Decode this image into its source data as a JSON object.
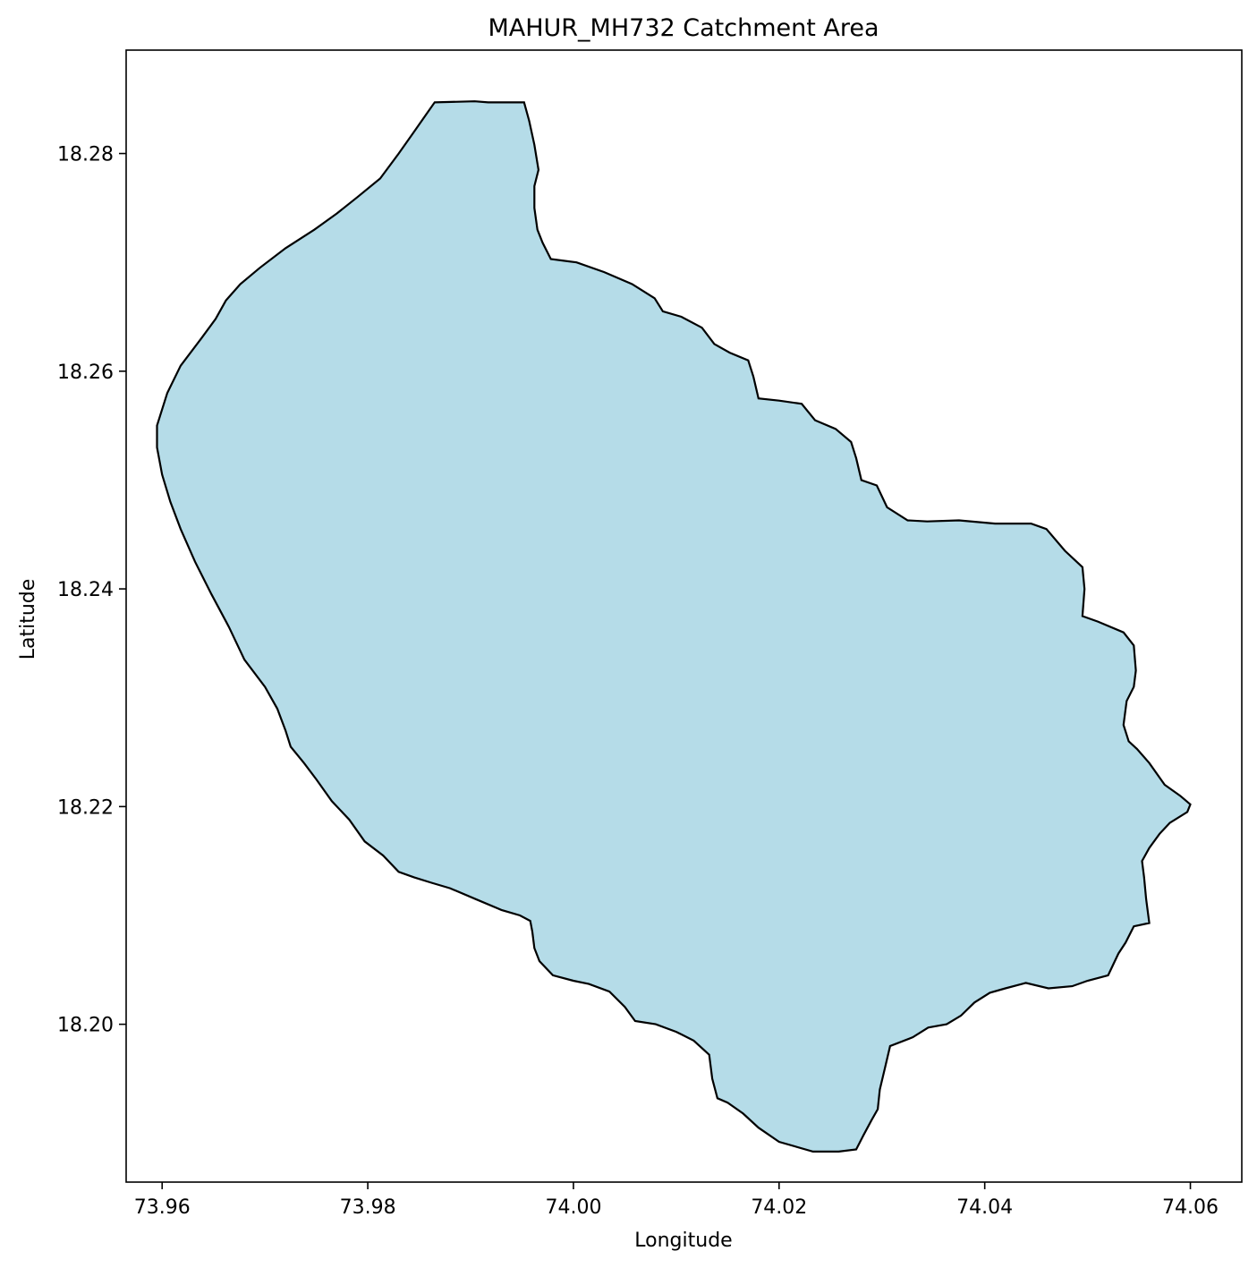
{
  "chart_data": {
    "type": "map",
    "title": "MAHUR_MH732 Catchment Area",
    "xlabel": "Longitude",
    "ylabel": "Latitude",
    "xlim": [
      73.9565,
      74.065
    ],
    "ylim": [
      18.1855,
      18.2895
    ],
    "xticks": [
      {
        "value": 73.96,
        "label": "73.96"
      },
      {
        "value": 73.98,
        "label": "73.98"
      },
      {
        "value": 74.0,
        "label": "74.00"
      },
      {
        "value": 74.02,
        "label": "74.02"
      },
      {
        "value": 74.04,
        "label": "74.04"
      },
      {
        "value": 74.06,
        "label": "74.06"
      }
    ],
    "yticks": [
      {
        "value": 18.2,
        "label": "18.20"
      },
      {
        "value": 18.22,
        "label": "18.22"
      },
      {
        "value": 18.24,
        "label": "18.24"
      },
      {
        "value": 18.26,
        "label": "18.26"
      },
      {
        "value": 18.28,
        "label": "18.28"
      }
    ],
    "grid": false,
    "fill_color": "#add8e6",
    "fill_opacity": 0.9,
    "edge_color": "#000000",
    "boundary": [
      [
        73.9865,
        18.2847
      ],
      [
        73.9904,
        18.2848
      ],
      [
        73.9917,
        18.2847
      ],
      [
        73.9952,
        18.2847
      ],
      [
        73.9957,
        18.283
      ],
      [
        73.9962,
        18.2808
      ],
      [
        73.9966,
        18.2785
      ],
      [
        73.9962,
        18.277
      ],
      [
        73.9962,
        18.275
      ],
      [
        73.9965,
        18.273
      ],
      [
        73.997,
        18.2718
      ],
      [
        73.9978,
        18.2703
      ],
      [
        74.0003,
        18.27
      ],
      [
        74.003,
        18.2691
      ],
      [
        74.0057,
        18.268
      ],
      [
        74.0079,
        18.2667
      ],
      [
        74.0087,
        18.2655
      ],
      [
        74.0105,
        18.265
      ],
      [
        74.0125,
        18.264
      ],
      [
        74.0137,
        18.2625
      ],
      [
        74.0152,
        18.2617
      ],
      [
        74.017,
        18.261
      ],
      [
        74.0175,
        18.2595
      ],
      [
        74.018,
        18.2575
      ],
      [
        74.02,
        18.2573
      ],
      [
        74.0222,
        18.257
      ],
      [
        74.0235,
        18.2555
      ],
      [
        74.0255,
        18.2547
      ],
      [
        74.027,
        18.2535
      ],
      [
        74.0275,
        18.252
      ],
      [
        74.028,
        18.25
      ],
      [
        74.0295,
        18.2495
      ],
      [
        74.0305,
        18.2475
      ],
      [
        74.0325,
        18.2463
      ],
      [
        74.0344,
        18.2462
      ],
      [
        74.0375,
        18.2463
      ],
      [
        74.041,
        18.246
      ],
      [
        74.0445,
        18.246
      ],
      [
        74.046,
        18.2455
      ],
      [
        74.0478,
        18.2435
      ],
      [
        74.0495,
        18.242
      ],
      [
        74.0497,
        18.24
      ],
      [
        74.0495,
        18.2375
      ],
      [
        74.051,
        18.237
      ],
      [
        74.0535,
        18.236
      ],
      [
        74.0545,
        18.2348
      ],
      [
        74.0547,
        18.2325
      ],
      [
        74.0545,
        18.231
      ],
      [
        74.0538,
        18.2297
      ],
      [
        74.0535,
        18.2275
      ],
      [
        74.054,
        18.226
      ],
      [
        74.0548,
        18.2253
      ],
      [
        74.056,
        18.224
      ],
      [
        74.0575,
        18.222
      ],
      [
        74.059,
        18.221
      ],
      [
        74.06,
        18.2202
      ],
      [
        74.0597,
        18.2195
      ],
      [
        74.058,
        18.2185
      ],
      [
        74.057,
        18.2175
      ],
      [
        74.056,
        18.2162
      ],
      [
        74.0553,
        18.215
      ],
      [
        74.0555,
        18.2135
      ],
      [
        74.0557,
        18.2115
      ],
      [
        74.056,
        18.2093
      ],
      [
        74.0545,
        18.209
      ],
      [
        74.0537,
        18.2075
      ],
      [
        74.053,
        18.2065
      ],
      [
        74.052,
        18.2045
      ],
      [
        74.05,
        18.204
      ],
      [
        74.0485,
        18.2035
      ],
      [
        74.0462,
        18.2033
      ],
      [
        74.044,
        18.2038
      ],
      [
        74.042,
        18.2033
      ],
      [
        74.0405,
        18.2029
      ],
      [
        74.039,
        18.202
      ],
      [
        74.0377,
        18.2008
      ],
      [
        74.0363,
        18.2
      ],
      [
        74.0345,
        18.1997
      ],
      [
        74.033,
        18.1988
      ],
      [
        74.0308,
        18.198
      ],
      [
        74.0303,
        18.196
      ],
      [
        74.0298,
        18.194
      ],
      [
        74.0296,
        18.1922
      ],
      [
        74.029,
        18.1912
      ],
      [
        74.0282,
        18.1898
      ],
      [
        74.0275,
        18.1885
      ],
      [
        74.0258,
        18.1883
      ],
      [
        74.0233,
        18.1883
      ],
      [
        74.02,
        18.1892
      ],
      [
        74.018,
        18.1905
      ],
      [
        74.0165,
        18.1918
      ],
      [
        74.015,
        18.1928
      ],
      [
        74.014,
        18.1932
      ],
      [
        74.0135,
        18.195
      ],
      [
        74.0132,
        18.1972
      ],
      [
        74.0117,
        18.1985
      ],
      [
        74.01,
        18.1993
      ],
      [
        74.008,
        18.2
      ],
      [
        74.006,
        18.2003
      ],
      [
        74.005,
        18.2016
      ],
      [
        74.0035,
        18.203
      ],
      [
        74.0015,
        18.2037
      ],
      [
        74.0,
        18.204
      ],
      [
        73.998,
        18.2045
      ],
      [
        73.9967,
        18.2058
      ],
      [
        73.9962,
        18.207
      ],
      [
        73.996,
        18.2085
      ],
      [
        73.9958,
        18.2095
      ],
      [
        73.9948,
        18.21
      ],
      [
        73.993,
        18.2105
      ],
      [
        73.9905,
        18.2115
      ],
      [
        73.988,
        18.2125
      ],
      [
        73.9862,
        18.213
      ],
      [
        73.9845,
        18.2135
      ],
      [
        73.983,
        18.214
      ],
      [
        73.9815,
        18.2155
      ],
      [
        73.9797,
        18.2168
      ],
      [
        73.9782,
        18.2188
      ],
      [
        73.9765,
        18.2205
      ],
      [
        73.975,
        18.2225
      ],
      [
        73.9738,
        18.224
      ],
      [
        73.9725,
        18.2255
      ],
      [
        73.972,
        18.227
      ],
      [
        73.9712,
        18.229
      ],
      [
        73.97,
        18.231
      ],
      [
        73.968,
        18.2335
      ],
      [
        73.9665,
        18.2365
      ],
      [
        73.9648,
        18.2395
      ],
      [
        73.9632,
        18.2425
      ],
      [
        73.9618,
        18.2455
      ],
      [
        73.9608,
        18.248
      ],
      [
        73.96,
        18.2505
      ],
      [
        73.9595,
        18.253
      ],
      [
        73.9595,
        18.255
      ],
      [
        73.9605,
        18.258
      ],
      [
        73.9618,
        18.2605
      ],
      [
        73.9638,
        18.263
      ],
      [
        73.9652,
        18.2648
      ],
      [
        73.9662,
        18.2665
      ],
      [
        73.9676,
        18.268
      ],
      [
        73.9695,
        18.2695
      ],
      [
        73.972,
        18.2713
      ],
      [
        73.9748,
        18.273
      ],
      [
        73.977,
        18.2745
      ],
      [
        73.979,
        18.276
      ],
      [
        73.9812,
        18.2777
      ],
      [
        73.983,
        18.28
      ],
      [
        73.9845,
        18.282
      ]
    ]
  }
}
